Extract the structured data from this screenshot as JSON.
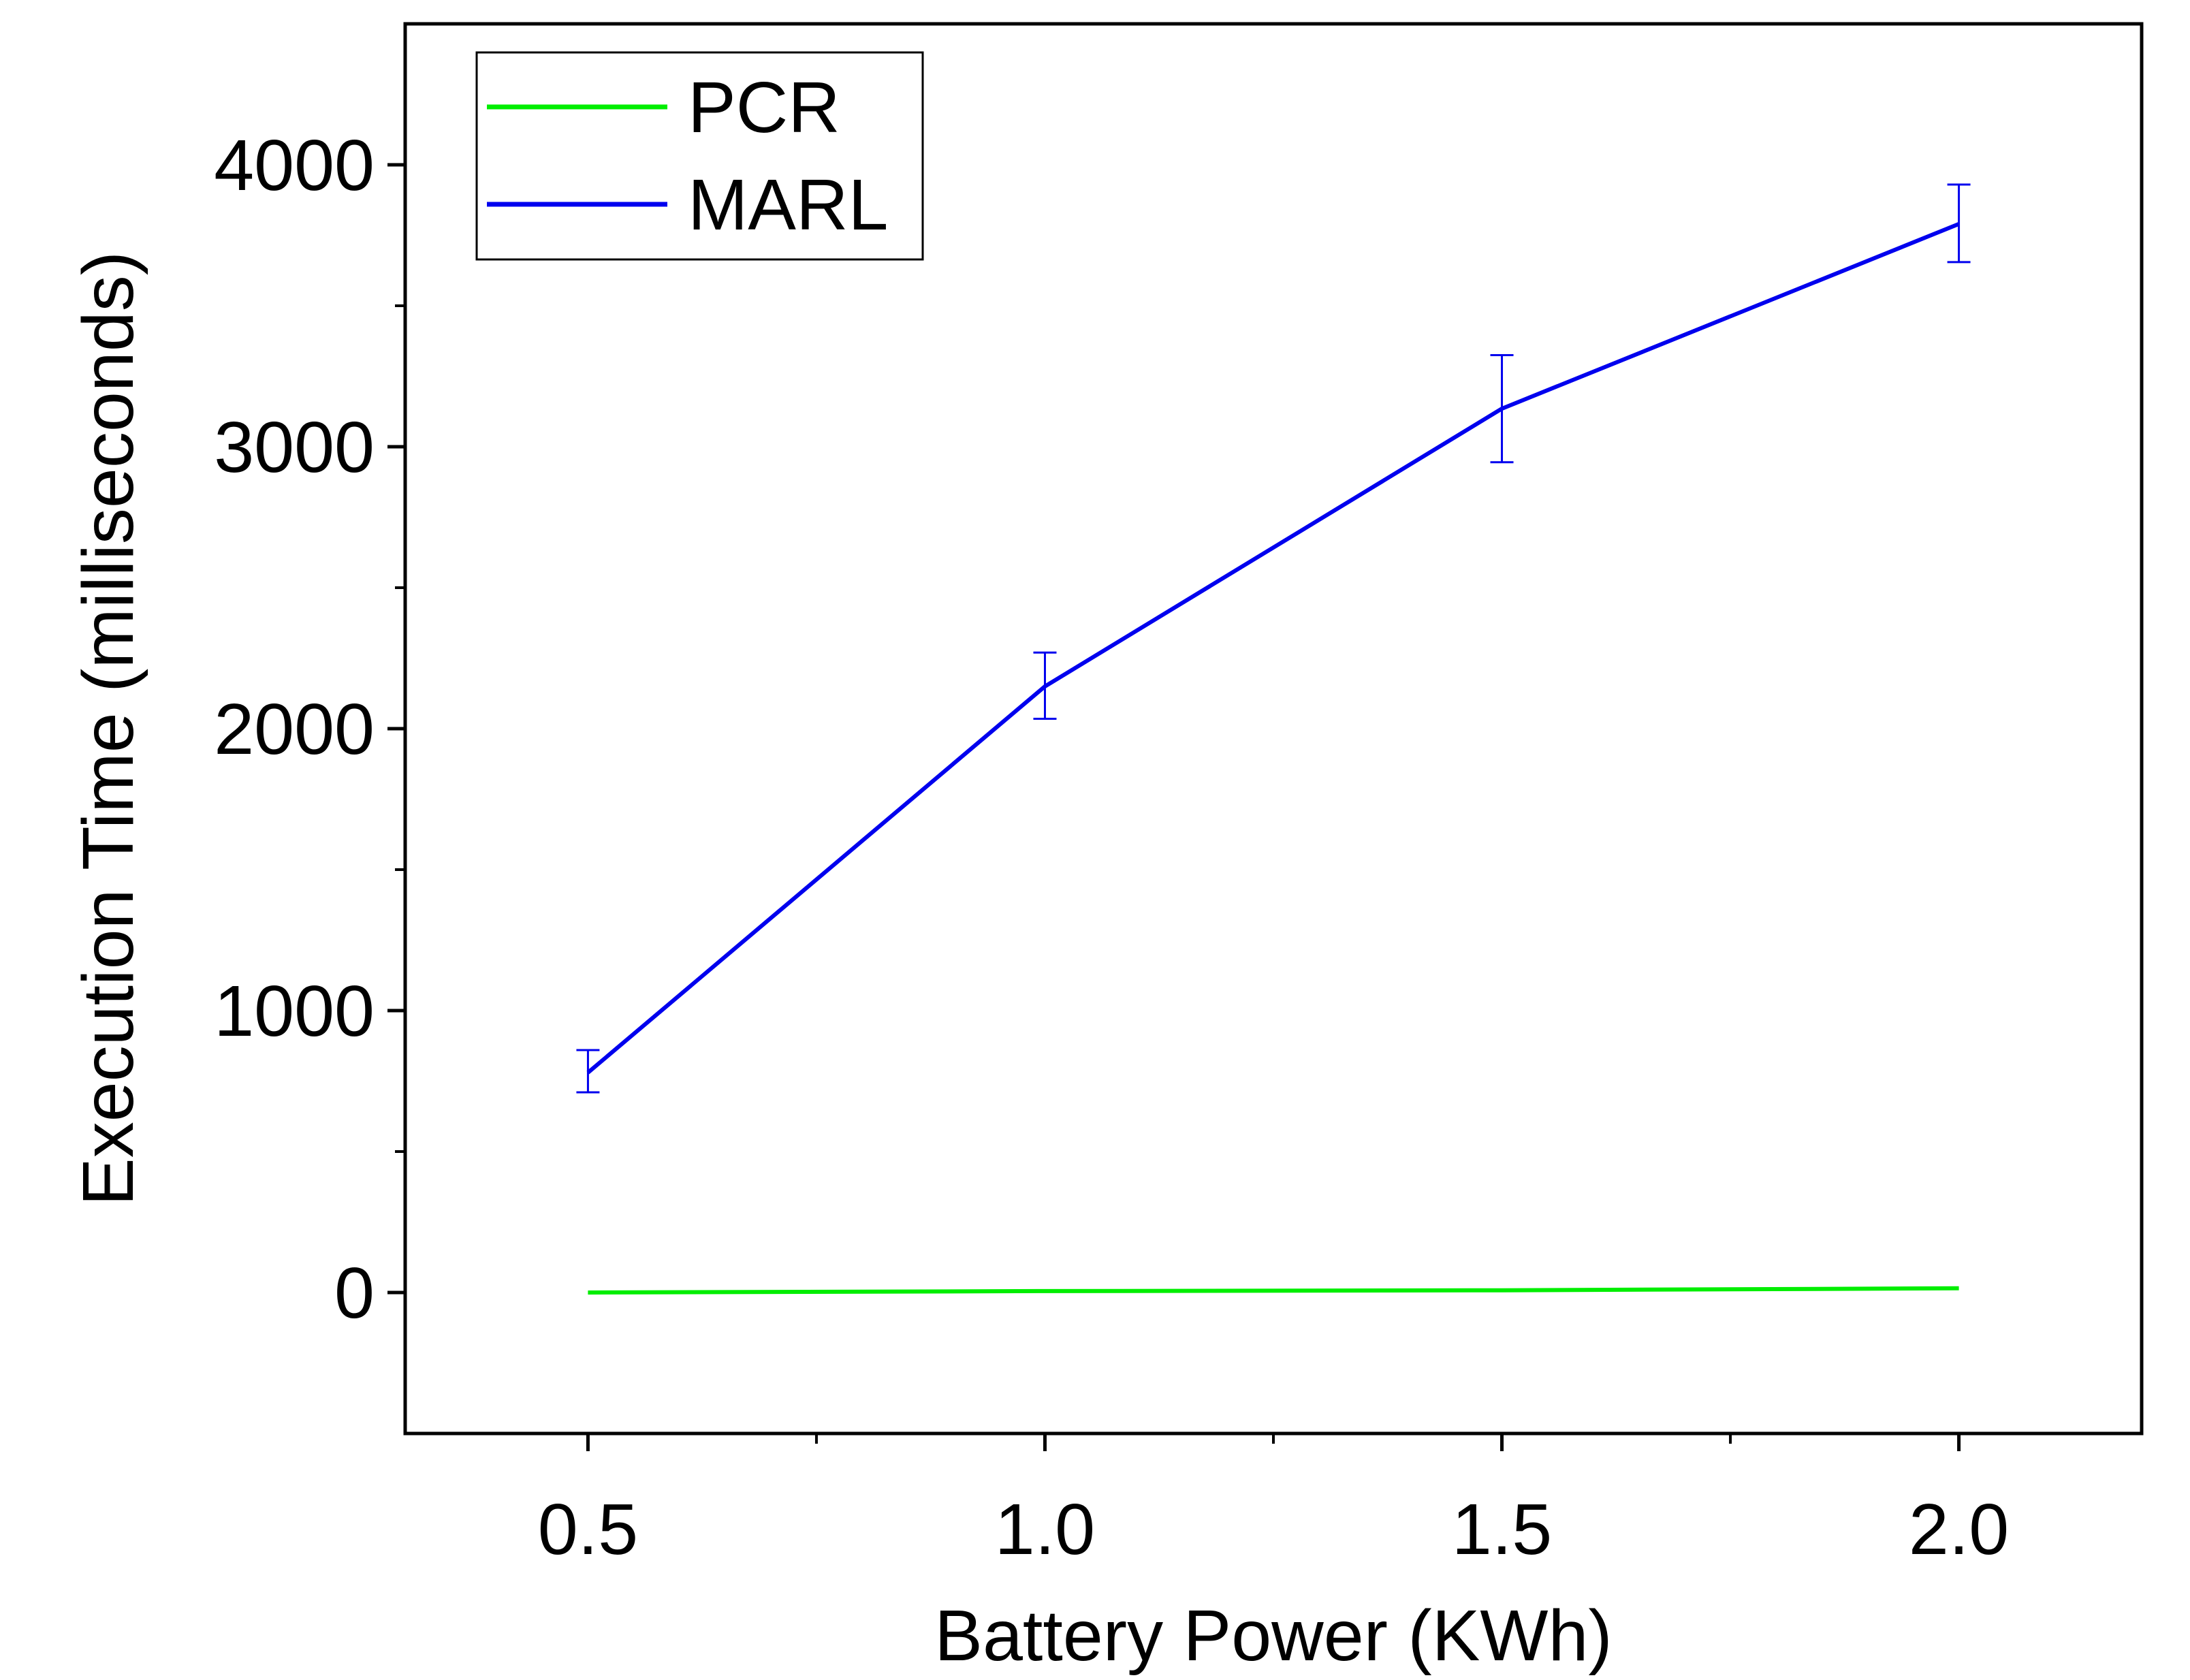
{
  "chart_data": {
    "type": "line",
    "title": "",
    "xlabel": "Battery Power (KWh)",
    "ylabel": "Execution Time (milliseconds)",
    "xlim": [
      0.3,
      2.2
    ],
    "ylim": [
      -500,
      4500
    ],
    "x_ticks": [
      0.5,
      1.0,
      1.5,
      2.0
    ],
    "x_tick_labels": [
      "0.5",
      "1.0",
      "1.5",
      "2.0"
    ],
    "x_minor_ticks": [
      0.75,
      1.25,
      1.75
    ],
    "y_ticks": [
      0,
      1000,
      2000,
      3000,
      4000
    ],
    "y_tick_labels": [
      "0",
      "1000",
      "2000",
      "3000",
      "4000"
    ],
    "y_minor_ticks": [
      500,
      1500,
      2500,
      3500
    ],
    "grid": false,
    "legend_position": "top-left",
    "series": [
      {
        "name": "PCR",
        "color": "#00ee00",
        "x": [
          0.5,
          1.0,
          1.5,
          2.0
        ],
        "y": [
          0,
          5,
          8,
          15
        ],
        "yerr": null
      },
      {
        "name": "MARL",
        "color": "#0000ee",
        "x": [
          0.5,
          1.0,
          1.5,
          2.0
        ],
        "y": [
          780,
          2150,
          3135,
          3790
        ],
        "yerr": [
          [
            710,
            860
          ],
          [
            2035,
            2270
          ],
          [
            2945,
            3325
          ],
          [
            3655,
            3930
          ]
        ]
      }
    ]
  }
}
